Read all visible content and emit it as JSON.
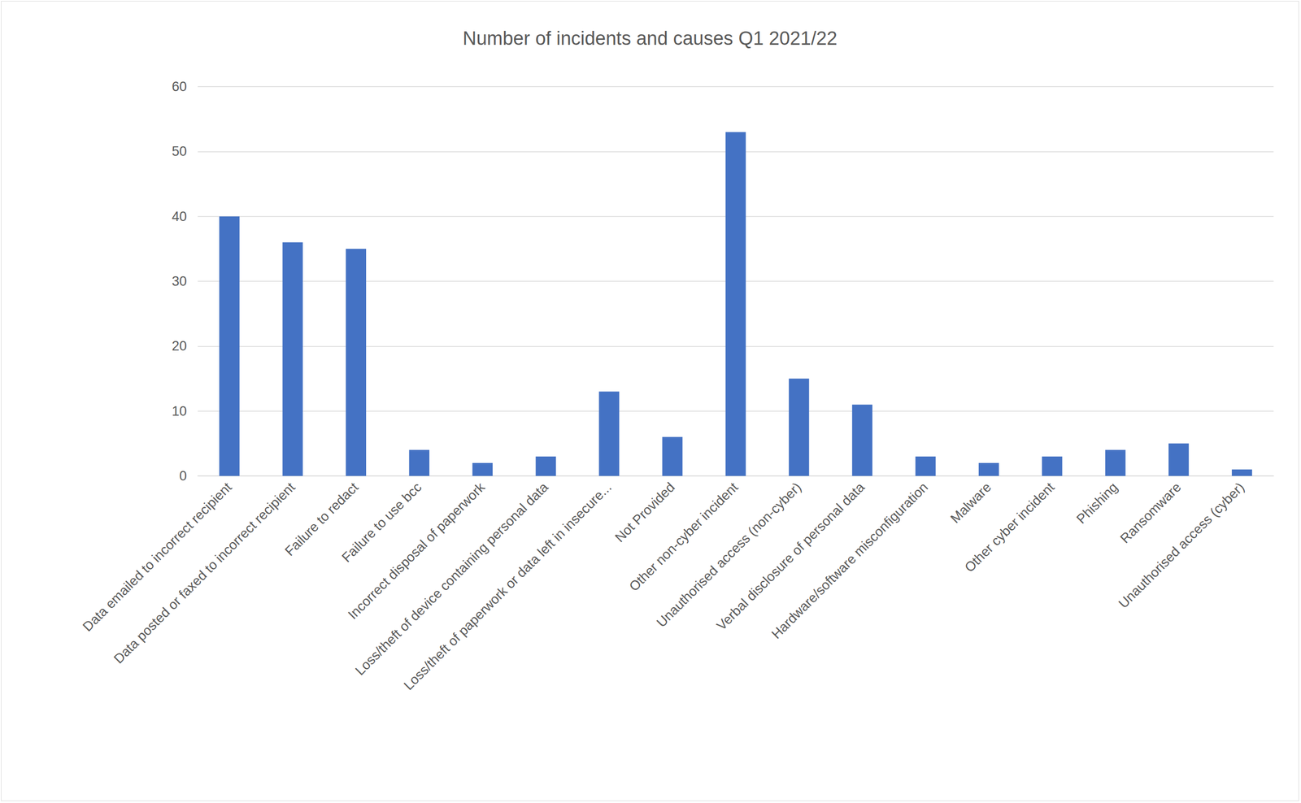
{
  "chart_data": {
    "type": "bar",
    "title": "Number of incidents and causes Q1 2021/22",
    "categories": [
      "Data emailed to incorrect recipient",
      "Data posted or faxed to incorrect recipient",
      "Failure to redact",
      "Failure to use bcc",
      "Incorrect disposal of paperwork",
      "Loss/theft of device containing personal data",
      "Loss/theft of paperwork or data left in insecure...",
      "Not Provided",
      "Other non-cyber incident",
      "Unauthorised access (non-cyber)",
      "Verbal disclosure of personal data",
      "Hardware/software misconfiguration",
      "Malware",
      "Other cyber incident",
      "Phishing",
      "Ransomware",
      "Unauthorised access (cyber)"
    ],
    "values": [
      40,
      36,
      35,
      4,
      2,
      3,
      13,
      6,
      53,
      15,
      11,
      3,
      2,
      3,
      4,
      5,
      1
    ],
    "color": "#4472c4",
    "ylim": [
      0,
      60
    ],
    "yticks": [
      0,
      10,
      20,
      30,
      40,
      50,
      60
    ],
    "grid": true
  }
}
